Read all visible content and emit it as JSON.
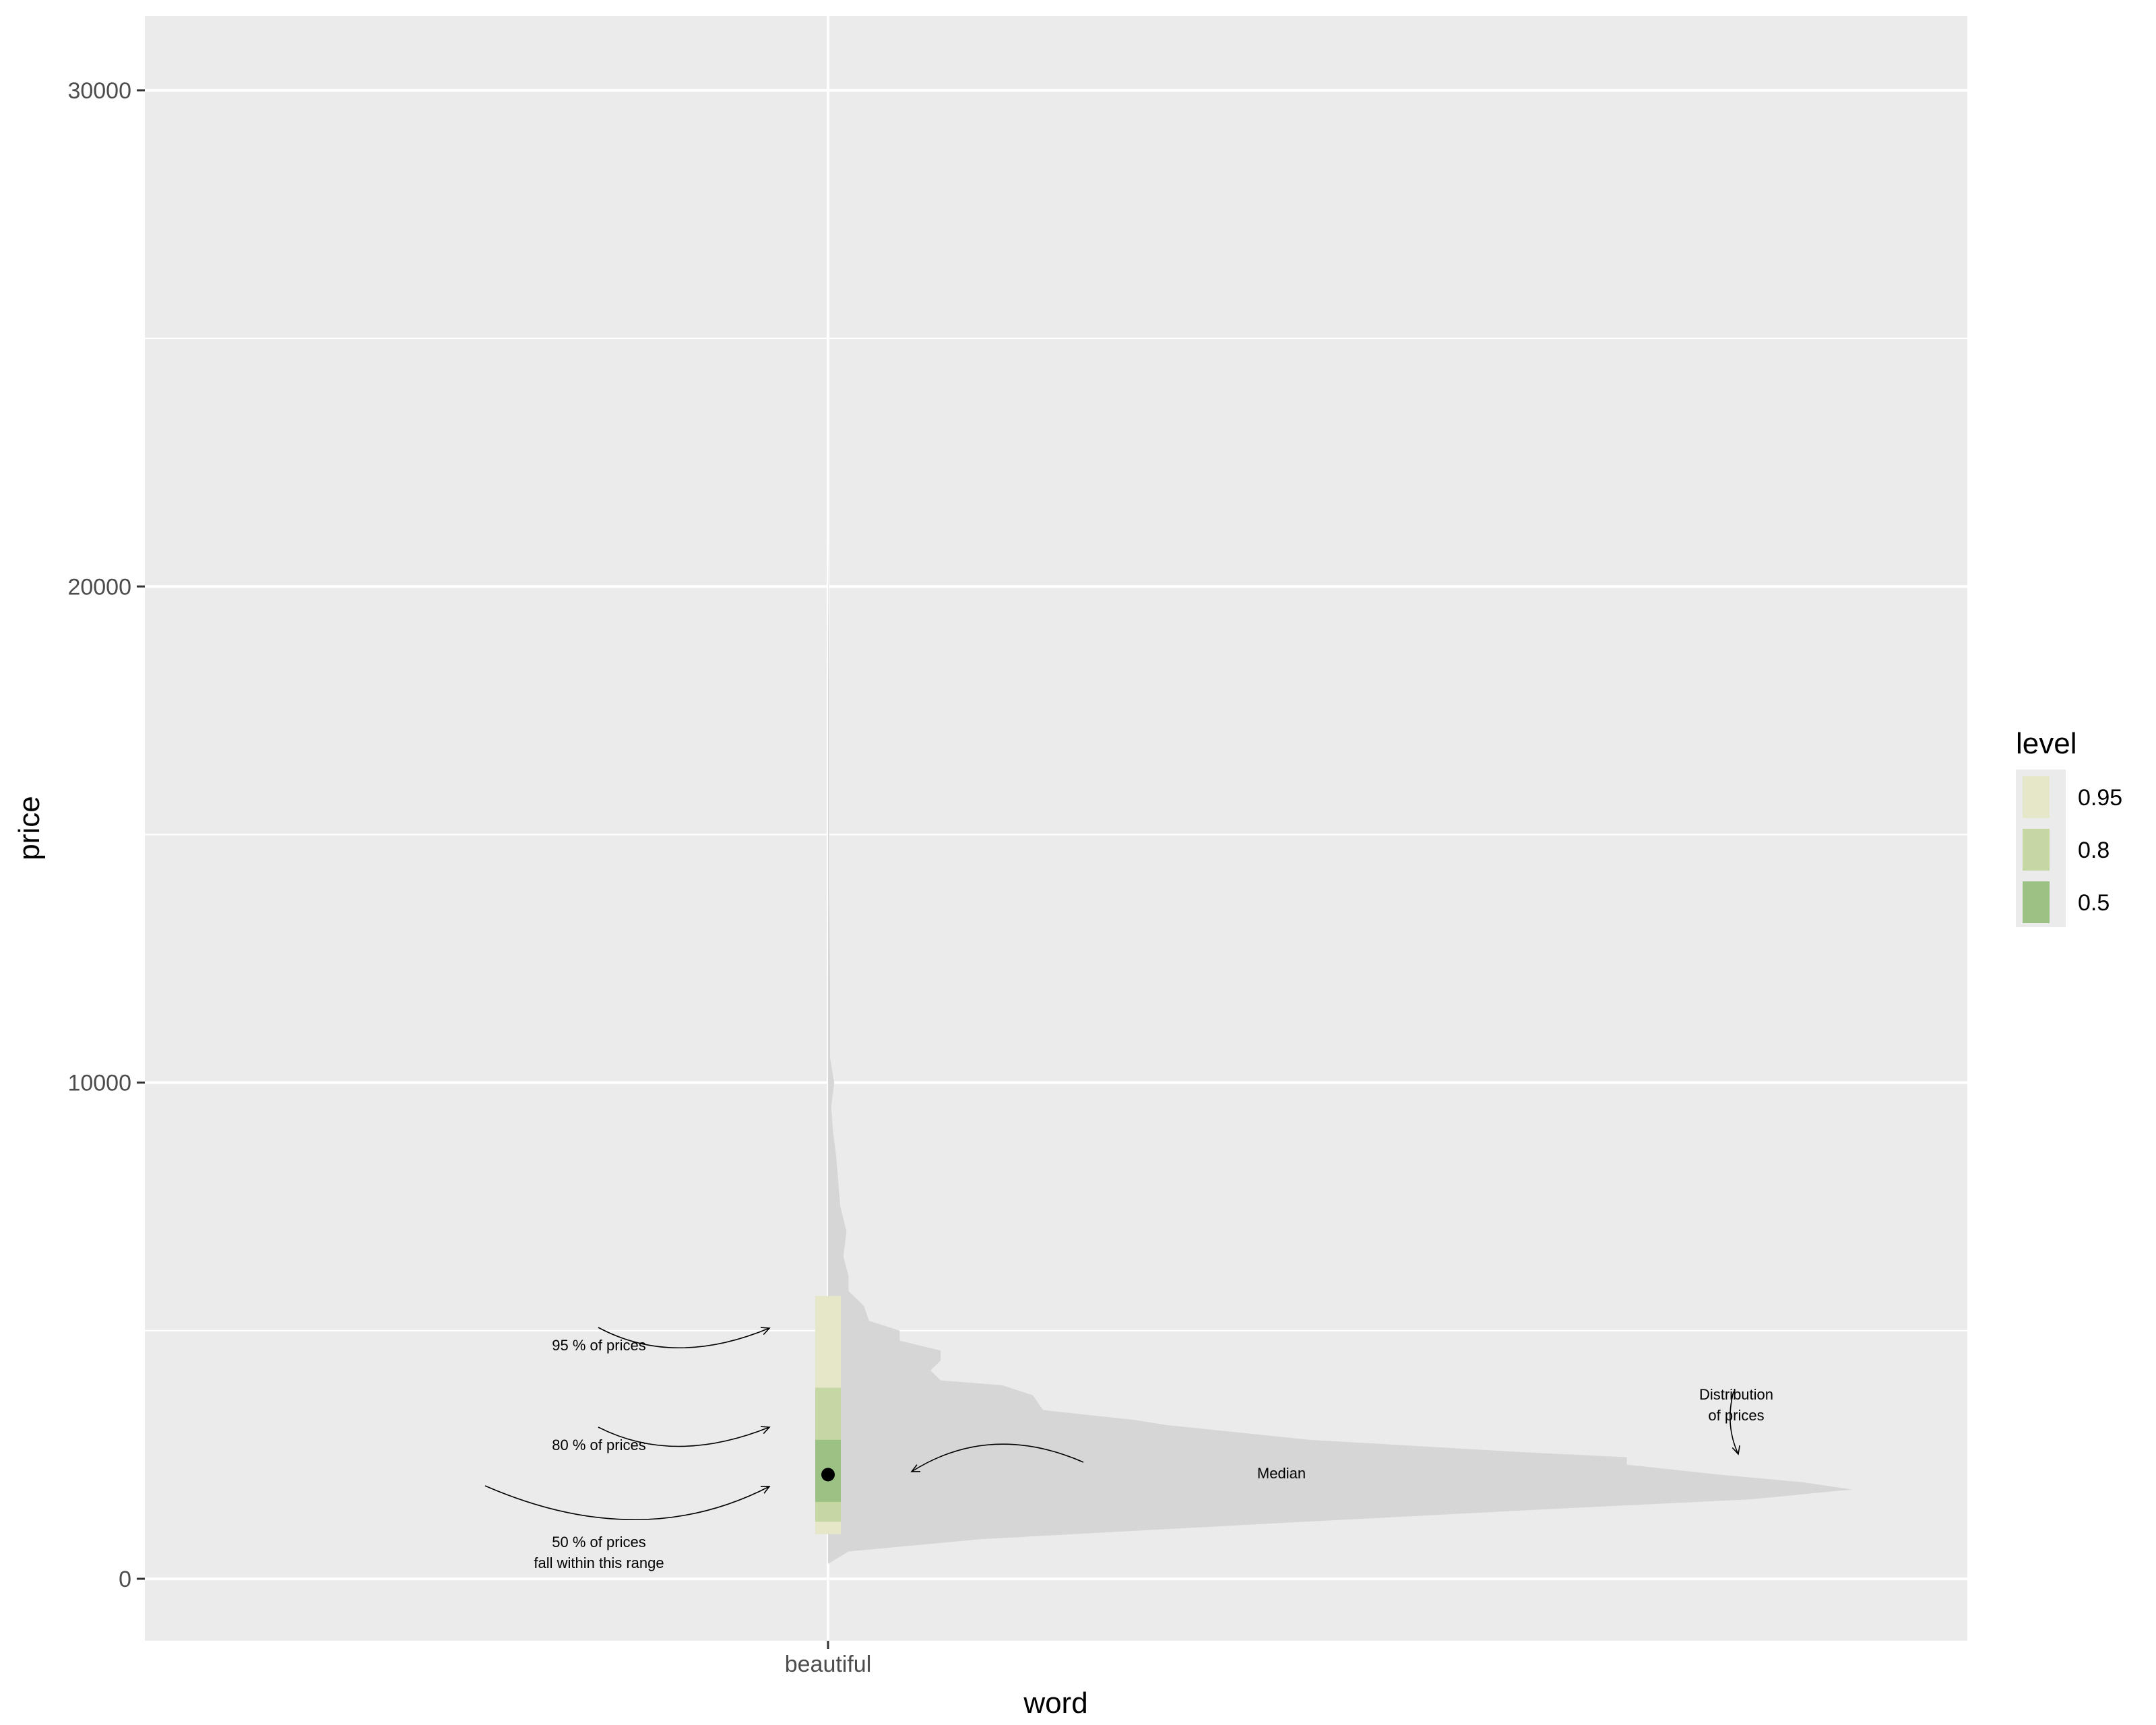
{
  "chart_data": {
    "type": "halfeye",
    "xlabel": "word",
    "ylabel": "price",
    "categories": [
      "beautiful"
    ],
    "ylim": [
      -1250,
      31500
    ],
    "y_ticks": [
      0,
      10000,
      20000,
      30000
    ],
    "grid": true,
    "colors": {
      "panel": "#ebebeb",
      "grid_major": "#ffffff",
      "grid_minor": "#f5f5f5",
      "density": "#d6d6d6",
      "level_0.95": "#e6e6c8",
      "level_0.8": "#c5d7a2",
      "level_0.5": "#9bc184",
      "median": "#000000"
    },
    "median": 2100,
    "intervals": [
      {
        "level": "0.95",
        "low": 900,
        "high": 5700
      },
      {
        "level": "0.8",
        "low": 1150,
        "high": 3850
      },
      {
        "level": "0.5",
        "low": 1550,
        "high": 2800
      }
    ],
    "legend": {
      "title": "level",
      "position": "right",
      "items": [
        "0.95",
        "0.8",
        "0.5"
      ]
    },
    "density": [
      [
        300,
        0.0
      ],
      [
        550,
        0.02
      ],
      [
        800,
        0.15
      ],
      [
        1100,
        0.42
      ],
      [
        1400,
        0.7
      ],
      [
        1600,
        0.9
      ],
      [
        1800,
        1.0
      ],
      [
        1950,
        0.95
      ],
      [
        2100,
        0.87
      ],
      [
        2300,
        0.78
      ],
      [
        2450,
        0.78
      ],
      [
        2550,
        0.68
      ],
      [
        2800,
        0.47
      ],
      [
        3100,
        0.33
      ],
      [
        3200,
        0.3
      ],
      [
        3400,
        0.21
      ],
      [
        3700,
        0.2
      ],
      [
        3900,
        0.17
      ],
      [
        4000,
        0.11
      ],
      [
        4200,
        0.1
      ],
      [
        4400,
        0.11
      ],
      [
        4600,
        0.11
      ],
      [
        4800,
        0.07
      ],
      [
        5000,
        0.07
      ],
      [
        5200,
        0.04
      ],
      [
        5500,
        0.035
      ],
      [
        5800,
        0.02
      ],
      [
        6100,
        0.02
      ],
      [
        6500,
        0.015
      ],
      [
        7000,
        0.018
      ],
      [
        7500,
        0.012
      ],
      [
        8000,
        0.01
      ],
      [
        8500,
        0.008
      ],
      [
        9000,
        0.005
      ],
      [
        9500,
        0.003
      ],
      [
        10000,
        0.006
      ],
      [
        10500,
        0.002
      ],
      [
        12000,
        0.002
      ],
      [
        14000,
        0.001
      ],
      [
        16000,
        0.001
      ],
      [
        18000,
        0.001
      ],
      [
        21000,
        0.0
      ]
    ],
    "annotations": [
      {
        "lines": [
          "95 % of prices"
        ]
      },
      {
        "lines": [
          "80 % of prices"
        ]
      },
      {
        "lines": [
          "50 % of prices",
          "fall within this range"
        ]
      },
      {
        "lines": [
          "Median"
        ]
      },
      {
        "lines": [
          "Distribution",
          "of prices"
        ]
      }
    ]
  }
}
